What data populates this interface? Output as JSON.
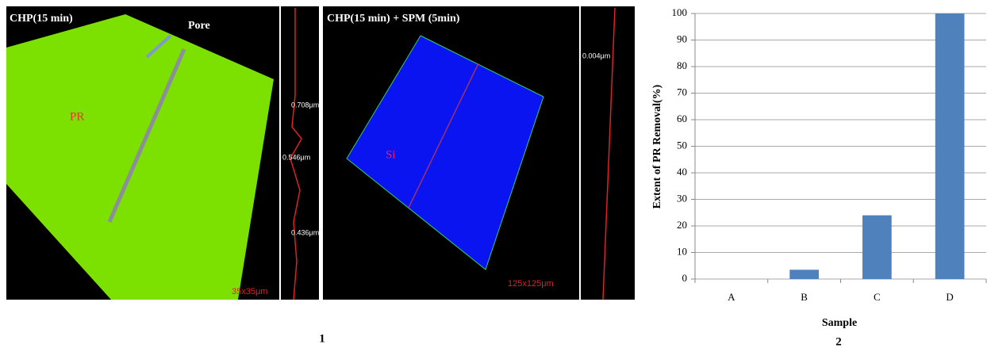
{
  "images": {
    "left": {
      "title": "CHP(15 min)",
      "pore": "Pore",
      "pr": "PR",
      "scale": "35x35μm",
      "h1": "0.708μm",
      "h2": "0.546μm",
      "h3": "0.436μm"
    },
    "right": {
      "title": "CHP(15 min) + SPM (5min)",
      "si": "Si",
      "scale": "125x125μm",
      "h1": "0.004μm"
    },
    "panel": "1"
  },
  "chart_data": {
    "type": "bar",
    "panel": "2",
    "categories": [
      "A",
      "B",
      "C",
      "D"
    ],
    "values": [
      0,
      3.5,
      24,
      100
    ],
    "color": "#4f81bd",
    "x_label": "Sample",
    "y_label": "Extent of PR Removal(%)",
    "ylim": [
      0,
      100
    ],
    "yticks": [
      0,
      10,
      20,
      30,
      40,
      50,
      60,
      70,
      80,
      90,
      100
    ],
    "grid": true
  }
}
